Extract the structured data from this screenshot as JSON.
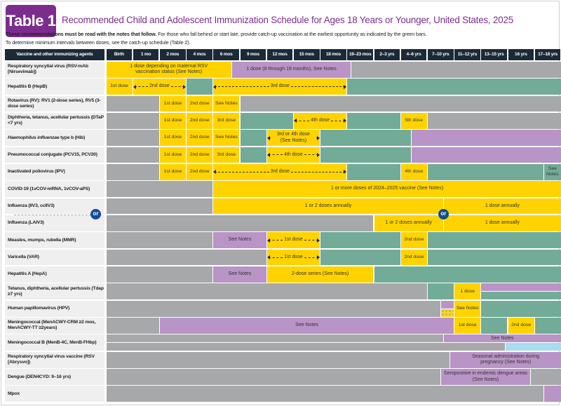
{
  "header": {
    "badge": "Table 1",
    "title": "Recommended Child and Adolescent Immunization Schedule for Ages 18 Years or Younger, United States, 2025",
    "intro_bold": "These recommendations must be read with the notes that follow.",
    "intro_rest": " For those who fall behind or start late, provide catch-up vaccination at the earliest opportunity as indicated by the green bars.",
    "intro_line2": "To determine minimum intervals between doses, see the catch-up schedule (Table 2)."
  },
  "colors": {
    "yellow": "#ffd300",
    "purple": "#b994c6",
    "green": "#72ab98",
    "gray": "#a7a8aa",
    "blue": "#a9dbf2",
    "dots": "#f2d53c",
    "brand": "#7b2d8e",
    "header": "#1c2a37"
  },
  "table": {
    "first_header": "Vaccine and other immunizing agents",
    "columns": [
      "Birth",
      "1 mo",
      "2 mos",
      "4 mos",
      "6 mos",
      "9 mos",
      "12 mos",
      "15 mos",
      "18 mos",
      "19–23 mos",
      "2–3 yrs",
      "4–6 yrs",
      "7–10 yrs",
      "11–12 yrs",
      "13–15 yrs",
      "16 yrs",
      "17–18 yrs"
    ],
    "or_label": "or",
    "rows": [
      {
        "label": "Respiratory syncytial virus (RSV-mAb [Nirsevimab])",
        "segments": [
          {
            "from": 0,
            "to": 4.7,
            "color": "yellow",
            "text": "1 dose depending on maternal RSV vaccination status (See Notes)"
          },
          {
            "from": 4.7,
            "to": 9.15,
            "color": "purple",
            "text": "1 dose (8 through 19 months), See Notes"
          },
          {
            "from": 9.15,
            "to": 17,
            "color": "gray"
          }
        ]
      },
      {
        "label": "Hepatitis B (HepB)",
        "segments": [
          {
            "from": 0,
            "to": 1,
            "color": "yellow",
            "text": "1st dose"
          },
          {
            "from": 1,
            "to": 3,
            "color": "yellow",
            "text": "2nd dose",
            "arrows": true
          },
          {
            "from": 3,
            "to": 4,
            "color": "green"
          },
          {
            "from": 4,
            "to": 9,
            "color": "yellow",
            "text": "3rd dose",
            "arrows": true
          },
          {
            "from": 9,
            "to": 17,
            "color": "green"
          }
        ]
      },
      {
        "label": "Rotavirus (RV): RV1 (2-dose series), RV5 (3-dose series)",
        "segments": [
          {
            "from": 0,
            "to": 2,
            "color": "gray"
          },
          {
            "from": 2,
            "to": 3,
            "color": "yellow",
            "text": "1st dose"
          },
          {
            "from": 3,
            "to": 4,
            "color": "yellow",
            "text": "2nd dose"
          },
          {
            "from": 4,
            "to": 5,
            "color": "yellow",
            "text": "See Notes"
          },
          {
            "from": 5,
            "to": 17,
            "color": "gray"
          }
        ]
      },
      {
        "label": "Diphtheria, tetanus, acellular pertussis (DTaP <7 yrs)",
        "segments": [
          {
            "from": 0,
            "to": 2,
            "color": "gray"
          },
          {
            "from": 2,
            "to": 3,
            "color": "yellow",
            "text": "1st dose"
          },
          {
            "from": 3,
            "to": 4,
            "color": "yellow",
            "text": "2nd dose"
          },
          {
            "from": 4,
            "to": 5,
            "color": "yellow",
            "text": "3rd dose"
          },
          {
            "from": 5,
            "to": 7,
            "color": "green"
          },
          {
            "from": 7,
            "to": 9,
            "color": "yellow",
            "text": "4th dose",
            "arrows": true
          },
          {
            "from": 9,
            "to": 11,
            "color": "green"
          },
          {
            "from": 11,
            "to": 12,
            "color": "yellow",
            "text": "5th dose"
          },
          {
            "from": 12,
            "to": 17,
            "color": "gray"
          }
        ]
      },
      {
        "label_italic": "Haemophilus influenzae",
        "label": " type b (Hib)",
        "segments": [
          {
            "from": 0,
            "to": 2,
            "color": "gray"
          },
          {
            "from": 2,
            "to": 3,
            "color": "yellow",
            "text": "1st dose"
          },
          {
            "from": 3,
            "to": 4,
            "color": "yellow",
            "text": "2nd dose"
          },
          {
            "from": 4,
            "to": 5,
            "color": "yellow",
            "text": "See Notes"
          },
          {
            "from": 5,
            "to": 6,
            "color": "green"
          },
          {
            "from": 6,
            "to": 8,
            "color": "yellow",
            "text": "3rd or 4th dose (See Notes)",
            "arrows": true
          },
          {
            "from": 8,
            "to": 11.4,
            "color": "green"
          },
          {
            "from": 11.4,
            "to": 17,
            "color": "purple"
          }
        ]
      },
      {
        "label": "Pneumococcal conjugate (PCV15, PCV20)",
        "segments": [
          {
            "from": 0,
            "to": 2,
            "color": "gray"
          },
          {
            "from": 2,
            "to": 3,
            "color": "yellow",
            "text": "1st dose"
          },
          {
            "from": 3,
            "to": 4,
            "color": "yellow",
            "text": "2nd dose"
          },
          {
            "from": 4,
            "to": 5,
            "color": "yellow",
            "text": "3rd dose"
          },
          {
            "from": 5,
            "to": 6,
            "color": "green"
          },
          {
            "from": 6,
            "to": 8,
            "color": "yellow",
            "text": "4th dose",
            "arrows": true
          },
          {
            "from": 8,
            "to": 11.4,
            "color": "green"
          },
          {
            "from": 11.4,
            "to": 17,
            "color": "purple"
          }
        ]
      },
      {
        "label": "Inactivated poliovirus (IPV)",
        "segments": [
          {
            "from": 0,
            "to": 2,
            "color": "gray"
          },
          {
            "from": 2,
            "to": 3,
            "color": "yellow",
            "text": "1st dose"
          },
          {
            "from": 3,
            "to": 4,
            "color": "yellow",
            "text": "2nd dose"
          },
          {
            "from": 4,
            "to": 9,
            "color": "yellow",
            "text": "3rd dose",
            "arrows": true
          },
          {
            "from": 9,
            "to": 11,
            "color": "green"
          },
          {
            "from": 11,
            "to": 12,
            "color": "yellow",
            "text": "4th dose"
          },
          {
            "from": 12,
            "to": 16.35,
            "color": "green"
          },
          {
            "from": 16.35,
            "to": 17,
            "color": "green",
            "text": "See Notes"
          }
        ]
      },
      {
        "label": "COVID-19 (1vCOV-mRNA, 1vCOV-aPS)",
        "segments": [
          {
            "from": 0,
            "to": 4,
            "color": "gray"
          },
          {
            "from": 4,
            "to": 17,
            "color": "yellow",
            "text": "1 or more doses of 2024–2025 vaccine (See Notes)"
          }
        ]
      },
      {
        "label": "Influenza (IIV3, ccIIV3)",
        "segments": [
          {
            "from": 0,
            "to": 4,
            "color": "gray"
          },
          {
            "from": 4,
            "to": 12.6,
            "color": "yellow",
            "text": "1 or 2 doses annually"
          },
          {
            "from": 12.6,
            "to": 17,
            "color": "yellow",
            "text": "1 dose annually"
          }
        ]
      },
      {
        "label": "Influenza (LAIV3)",
        "segments": [
          {
            "from": 0,
            "to": 10,
            "color": "gray"
          },
          {
            "from": 10,
            "to": 12.6,
            "color": "yellow",
            "text": "1 or 2 doses annually"
          },
          {
            "from": 12.6,
            "to": 17,
            "color": "yellow",
            "text": "1 dose annually"
          }
        ]
      },
      {
        "label": "Measles, mumps, rubella (MMR)",
        "segments": [
          {
            "from": 0,
            "to": 4,
            "color": "gray"
          },
          {
            "from": 4,
            "to": 6,
            "color": "purple",
            "text": "See Notes"
          },
          {
            "from": 6,
            "to": 8,
            "color": "yellow",
            "text": "1st dose",
            "arrows": true
          },
          {
            "from": 8,
            "to": 11,
            "color": "green"
          },
          {
            "from": 11,
            "to": 12,
            "color": "yellow",
            "text": "2nd dose"
          },
          {
            "from": 12,
            "to": 17,
            "color": "green"
          }
        ]
      },
      {
        "label": "Varicella (VAR)",
        "segments": [
          {
            "from": 0,
            "to": 6,
            "color": "gray"
          },
          {
            "from": 6,
            "to": 8,
            "color": "yellow",
            "text": "1st dose",
            "arrows": true
          },
          {
            "from": 8,
            "to": 11,
            "color": "green"
          },
          {
            "from": 11,
            "to": 12,
            "color": "yellow",
            "text": "2nd dose"
          },
          {
            "from": 12,
            "to": 17,
            "color": "green"
          }
        ]
      },
      {
        "label": "Hepatitis A (HepA)",
        "segments": [
          {
            "from": 0,
            "to": 4,
            "color": "gray"
          },
          {
            "from": 4,
            "to": 6,
            "color": "purple",
            "text": "See Notes"
          },
          {
            "from": 6,
            "to": 10,
            "color": "yellow",
            "text": "2-dose series (See Notes)"
          },
          {
            "from": 10,
            "to": 17,
            "color": "green"
          }
        ]
      },
      {
        "label": "Tetanus, diphtheria, acellular pertussis (Tdap ≥7 yrs)",
        "segments": [
          {
            "from": 0,
            "to": 12,
            "color": "gray"
          },
          {
            "from": 12,
            "to": 13,
            "color": "green"
          },
          {
            "from": 13,
            "to": 14,
            "color": "yellow",
            "text": "1 dose"
          },
          {
            "from": 14,
            "to": 17,
            "color": "purple",
            "half": "top"
          },
          {
            "from": 14,
            "to": 17,
            "color": "green",
            "half": "bottom"
          }
        ]
      },
      {
        "label": "Human papillomavirus (HPV)",
        "segments": [
          {
            "from": 0,
            "to": 12.5,
            "color": "gray"
          },
          {
            "from": 12.5,
            "to": 13,
            "color": "purple",
            "half": "top"
          },
          {
            "from": 12.5,
            "to": 13,
            "color": "dots",
            "half": "bottom"
          },
          {
            "from": 13,
            "to": 14,
            "color": "yellow",
            "text": "See Notes"
          },
          {
            "from": 14,
            "to": 17,
            "color": "green"
          }
        ]
      },
      {
        "label": "Meningococcal (MenACWY-CRM ≥2 mos, MenACWY-TT ≥2years)",
        "segments": [
          {
            "from": 0,
            "to": 2,
            "color": "gray"
          },
          {
            "from": 2,
            "to": 13,
            "color": "purple",
            "text": "See Notes"
          },
          {
            "from": 13,
            "to": 14,
            "color": "yellow",
            "text": "1st dose"
          },
          {
            "from": 14,
            "to": 15,
            "color": "green"
          },
          {
            "from": 15,
            "to": 16,
            "color": "yellow",
            "text": "2nd dose"
          },
          {
            "from": 16,
            "to": 17,
            "color": "green"
          }
        ]
      },
      {
        "label": "Meningococcal B (MenB-4C, MenB-FHbp)",
        "segments": [
          {
            "from": 0,
            "to": 12.6,
            "color": "gray",
            "half": "top"
          },
          {
            "from": 12.6,
            "to": 17,
            "color": "purple",
            "half": "top",
            "text": "See Notes"
          },
          {
            "from": 0,
            "to": 14.9,
            "color": "gray",
            "half": "bottom"
          },
          {
            "from": 14.9,
            "to": 17,
            "color": "blue",
            "half": "bottom"
          }
        ]
      },
      {
        "label": "Respiratory syncytial virus vaccine (RSV [Abrysvo])",
        "segments": [
          {
            "from": 0,
            "to": 12.85,
            "color": "gray"
          },
          {
            "from": 12.85,
            "to": 17,
            "color": "purple",
            "text": "Seasonal administration during pregnancy (See Notes)"
          }
        ]
      },
      {
        "label": "Dengue (DEN4CYD: 9–16 yrs)",
        "segments": [
          {
            "from": 0,
            "to": 12.5,
            "color": "gray"
          },
          {
            "from": 12.5,
            "to": 15.85,
            "color": "purple",
            "text": "Seropositive in endemic dengue areas (See Notes)"
          },
          {
            "from": 15.85,
            "to": 17,
            "color": "gray"
          }
        ]
      },
      {
        "label": "Mpox",
        "segments": [
          {
            "from": 0,
            "to": 16.35,
            "color": "gray"
          },
          {
            "from": 16.35,
            "to": 17,
            "color": "purple"
          }
        ]
      }
    ]
  }
}
